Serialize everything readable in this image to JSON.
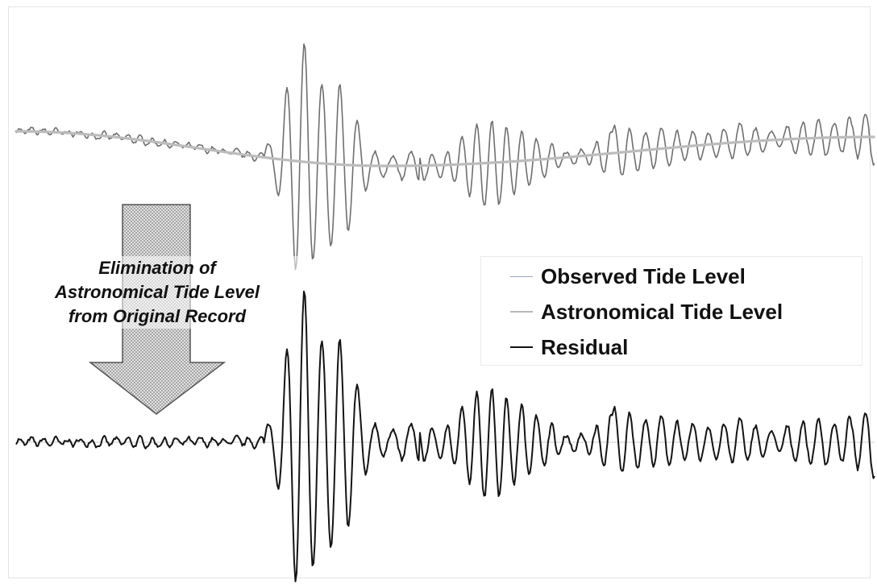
{
  "arrow": {
    "label_lines": [
      "Elimination of",
      "Astronomical Tide Level",
      "from Original Record"
    ]
  },
  "legend": {
    "items": [
      {
        "label": "Observed Tide Level",
        "color": "#9aa9c0"
      },
      {
        "label": "Astronomical Tide Level",
        "color": "#b8b8b8"
      },
      {
        "label": "Residual",
        "color": "#111111"
      }
    ]
  },
  "colors": {
    "observed": "#6f6f6f",
    "astronomical": "#bcbcbc",
    "residual": "#141414",
    "baseline": "#cfcfcf",
    "arrow_fill": "#d6d6d6",
    "arrow_stroke": "#555555"
  }
}
